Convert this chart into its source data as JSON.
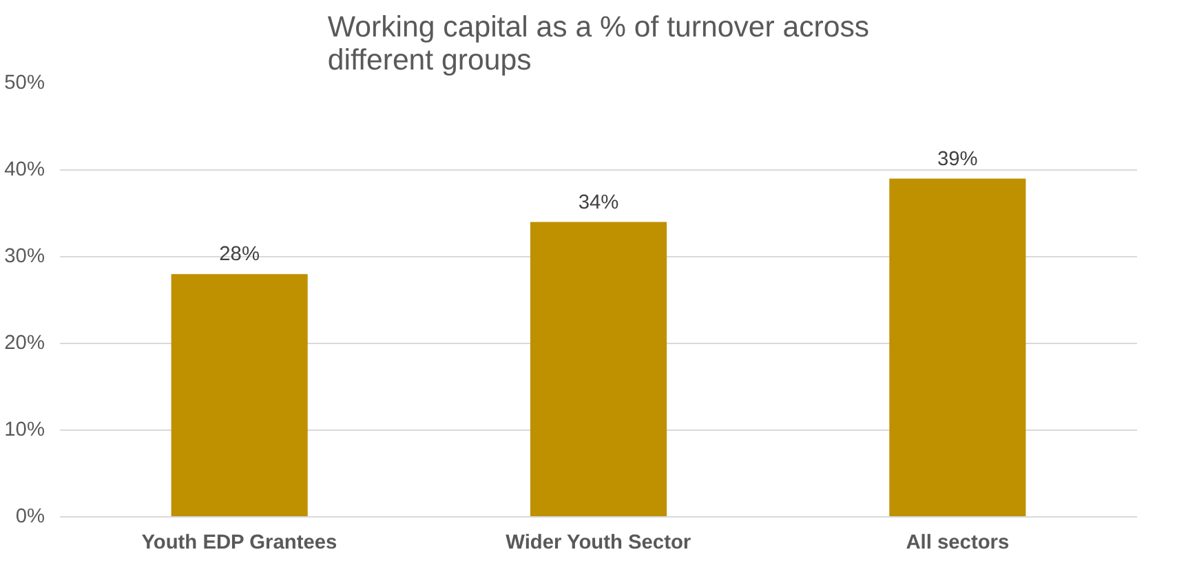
{
  "chart_data": {
    "type": "bar",
    "title": "Working capital as a % of turnover across different groups",
    "categories": [
      "Youth EDP Grantees",
      "Wider Youth Sector",
      "All sectors"
    ],
    "values": [
      28,
      34,
      39
    ],
    "color": "#bf9000",
    "value_labels": [
      "28%",
      "34%",
      "39%"
    ],
    "ylim": [
      0,
      50
    ],
    "yticks": [
      {
        "value": 0,
        "label": "0%"
      },
      {
        "value": 10,
        "label": "10%"
      },
      {
        "value": 20,
        "label": "20%"
      },
      {
        "value": 30,
        "label": "30%"
      },
      {
        "value": 40,
        "label": "40%"
      },
      {
        "value": 50,
        "label": "50%"
      }
    ],
    "grid": "y"
  }
}
